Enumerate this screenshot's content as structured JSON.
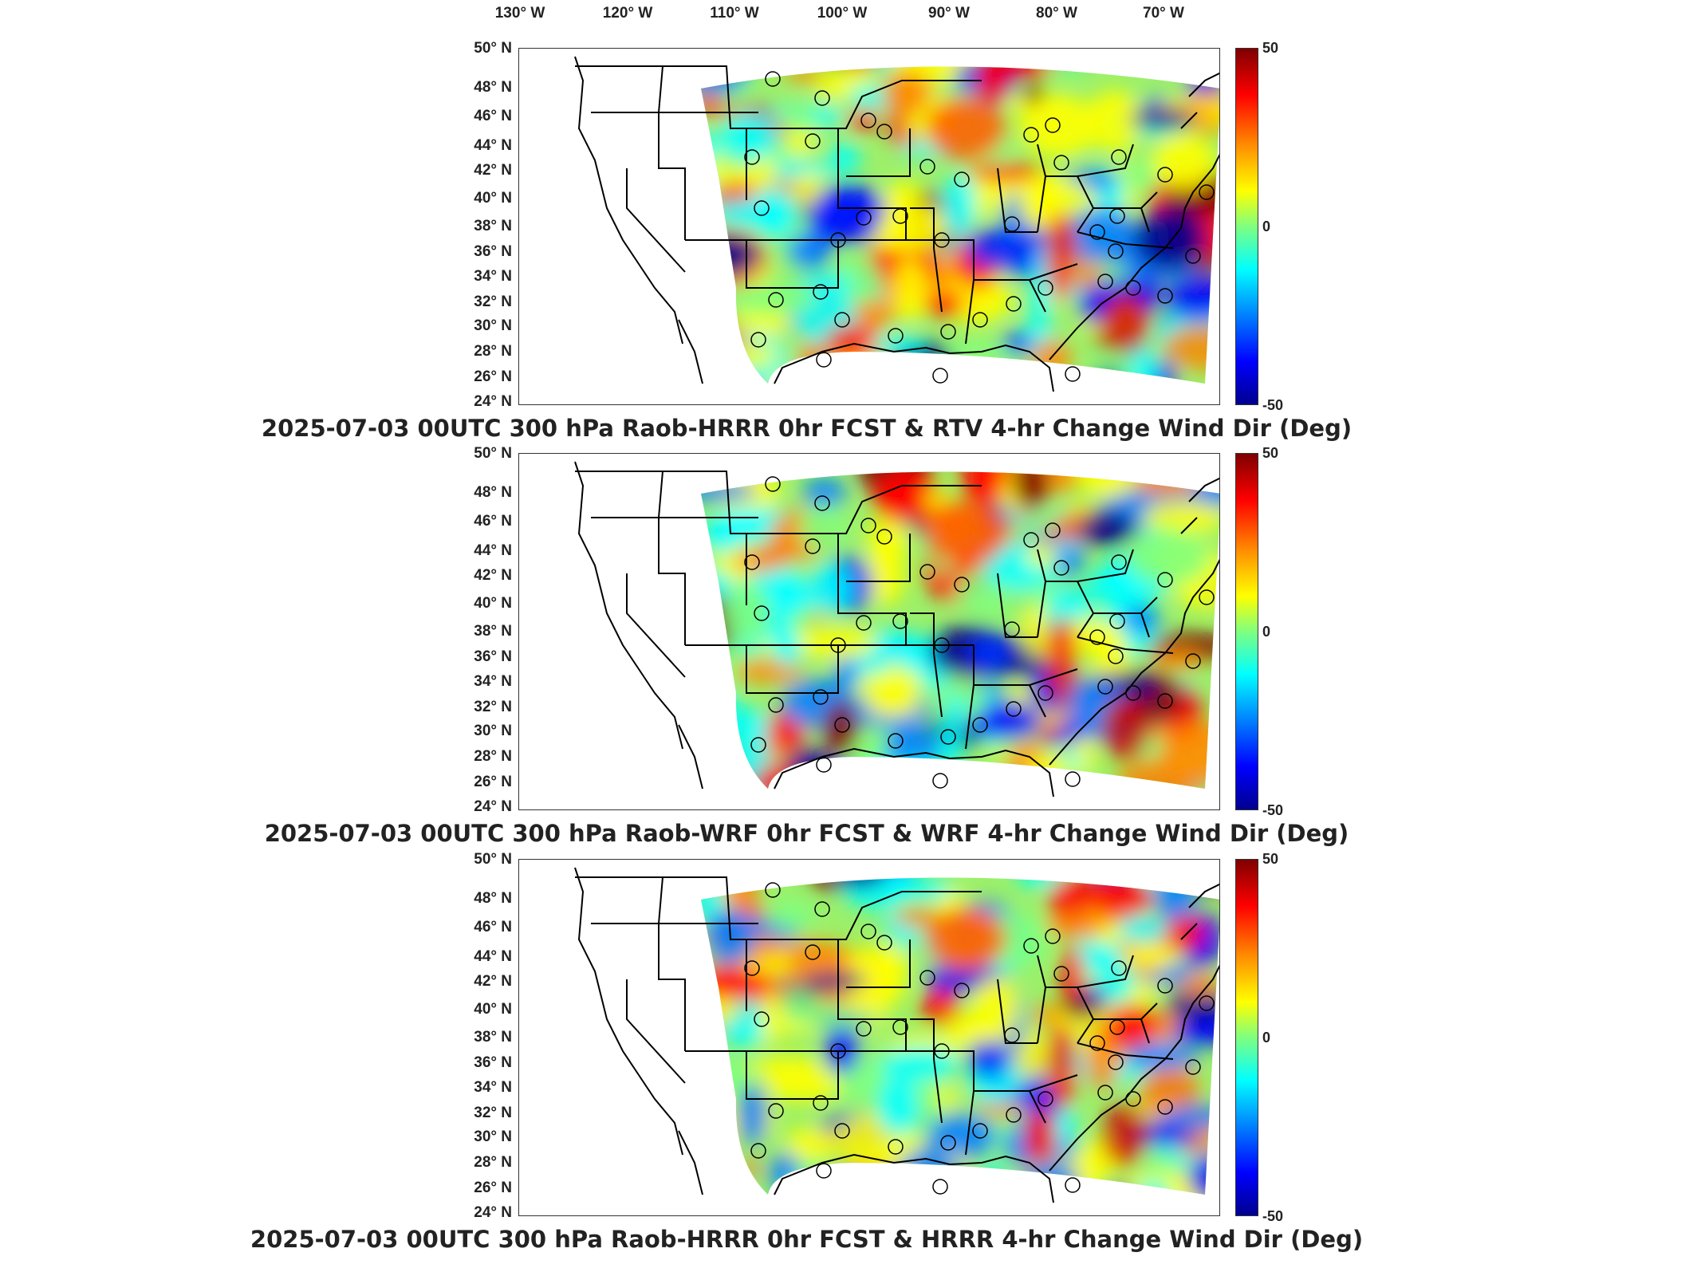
{
  "longitude_labels": [
    "130° W",
    "120° W",
    "110° W",
    "100° W",
    "90° W",
    "80° W",
    "70° W"
  ],
  "latitude_labels": [
    "50° N",
    "48° N",
    "46° N",
    "44° N",
    "42° N",
    "40° N",
    "38° N",
    "36° N",
    "34° N",
    "32° N",
    "30° N",
    "28° N",
    "26° N",
    "24° N"
  ],
  "colorbar": {
    "max_label": "50",
    "mid_label": "0",
    "min_label": "-50",
    "colors": [
      "#7f0000",
      "#ff0000",
      "#ff8c00",
      "#ffff00",
      "#7fff7f",
      "#00ffff",
      "#0080ff",
      "#0000ff",
      "#00008f"
    ]
  },
  "panels": [
    {
      "title": "2025-07-03 00UTC 300 hPa Raob-HRRR 0hr FCST & RTV 4-hr Change Wind Dir (Deg)"
    },
    {
      "title": "2025-07-03 00UTC 300 hPa Raob-WRF 0hr FCST & WRF 4-hr Change Wind Dir (Deg)"
    },
    {
      "title": "2025-07-03 00UTC 300 hPa Raob-HRRR 0hr FCST & HRRR 4-hr Change Wind Dir (Deg)"
    }
  ]
}
